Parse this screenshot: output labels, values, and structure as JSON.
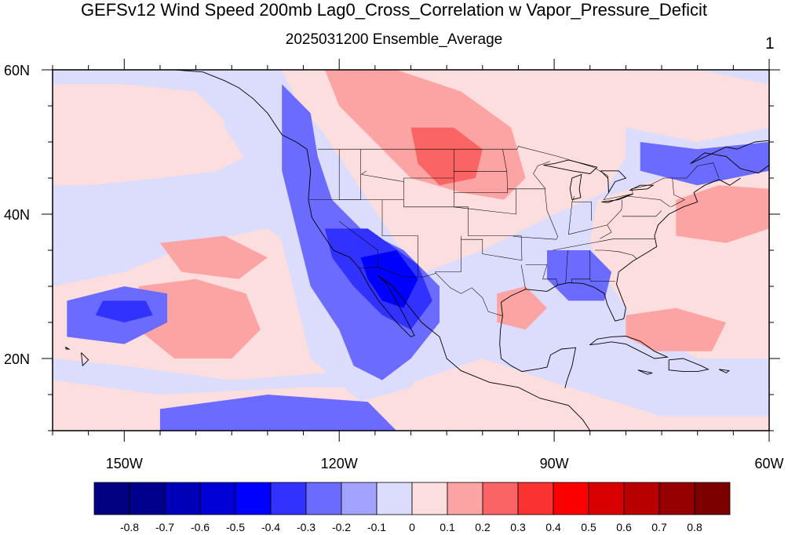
{
  "title": "GEFSv12 Wind Speed 200mb Lag0_Cross_Correlation w Vapor_Pressure_Deficit",
  "subtitle": "2025031200 Ensemble_Average",
  "panel_number": "1",
  "map": {
    "lon_range": [
      -160,
      -60
    ],
    "lat_range": [
      10,
      60
    ],
    "lon_ticks": [
      {
        "value": -150,
        "label": "150W"
      },
      {
        "value": -120,
        "label": "120W"
      },
      {
        "value": -90,
        "label": "90W"
      },
      {
        "value": -60,
        "label": "60W"
      }
    ],
    "lat_ticks": [
      {
        "value": 20,
        "label": "20N"
      },
      {
        "value": 40,
        "label": "40N"
      },
      {
        "value": 60,
        "label": "60N"
      }
    ],
    "background_field": "-0.1",
    "regions": [
      {
        "name": "east-pacific-light-red",
        "level": "0.1",
        "ring": [
          [
            -160,
            58
          ],
          [
            -150,
            58
          ],
          [
            -140,
            57
          ],
          [
            -135,
            52
          ],
          [
            -133,
            48
          ],
          [
            -137,
            46
          ],
          [
            -145,
            45
          ],
          [
            -155,
            44
          ],
          [
            -160,
            44
          ]
        ]
      },
      {
        "name": "subtropical-pacific-light-red",
        "level": "0.1",
        "ring": [
          [
            -160,
            30
          ],
          [
            -150,
            32
          ],
          [
            -140,
            36
          ],
          [
            -130,
            38
          ],
          [
            -124,
            34
          ],
          [
            -120,
            28
          ],
          [
            -118,
            22
          ],
          [
            -122,
            18
          ],
          [
            -135,
            17
          ],
          [
            -150,
            19
          ],
          [
            -160,
            20
          ]
        ]
      },
      {
        "name": "tropical-pacific-light-red",
        "level": "0.1",
        "ring": [
          [
            -160,
            17
          ],
          [
            -145,
            15
          ],
          [
            -125,
            16
          ],
          [
            -112,
            16
          ],
          [
            -100,
            20
          ],
          [
            -88,
            16
          ],
          [
            -75,
            12
          ],
          [
            -60,
            12
          ],
          [
            -60,
            10
          ],
          [
            -160,
            10
          ]
        ]
      },
      {
        "name": "north-us-light-red",
        "level": "0.1",
        "ring": [
          [
            -128,
            60
          ],
          [
            -110,
            60
          ],
          [
            -85,
            60
          ],
          [
            -80,
            54
          ],
          [
            -80,
            48
          ],
          [
            -83,
            43
          ],
          [
            -90,
            40
          ],
          [
            -100,
            35
          ],
          [
            -108,
            32
          ],
          [
            -112,
            36
          ],
          [
            -116,
            42
          ],
          [
            -120,
            48
          ],
          [
            -125,
            54
          ]
        ]
      },
      {
        "name": "atlantic-light-red",
        "level": "0.1",
        "ring": [
          [
            -84,
            42
          ],
          [
            -72,
            46
          ],
          [
            -60,
            47
          ],
          [
            -60,
            20
          ],
          [
            -70,
            20
          ],
          [
            -78,
            24
          ],
          [
            -82,
            30
          ],
          [
            -85,
            36
          ]
        ]
      },
      {
        "name": "canada-light-red",
        "level": "0.1",
        "ring": [
          [
            -85,
            60
          ],
          [
            -70,
            60
          ],
          [
            -60,
            58
          ],
          [
            -60,
            52
          ],
          [
            -70,
            50
          ],
          [
            -80,
            52
          ]
        ]
      },
      {
        "name": "plains-red",
        "level": "0.2",
        "ring": [
          [
            -122,
            60
          ],
          [
            -112,
            60
          ],
          [
            -103,
            57
          ],
          [
            -96,
            52
          ],
          [
            -94,
            45
          ],
          [
            -97,
            42
          ],
          [
            -103,
            43
          ],
          [
            -110,
            45
          ],
          [
            -115,
            50
          ],
          [
            -120,
            55
          ]
        ]
      },
      {
        "name": "atlantic-band-red",
        "level": "0.2",
        "ring": [
          [
            -73,
            42
          ],
          [
            -67,
            44
          ],
          [
            -60,
            43.5
          ],
          [
            -60,
            38
          ],
          [
            -66,
            36
          ],
          [
            -73,
            37
          ]
        ]
      },
      {
        "name": "hawaii-region-red",
        "level": "0.2",
        "ring": [
          [
            -148,
            30
          ],
          [
            -140,
            31
          ],
          [
            -133,
            29
          ],
          [
            -131,
            24
          ],
          [
            -135,
            20
          ],
          [
            -143,
            20
          ],
          [
            -148,
            24
          ]
        ]
      },
      {
        "name": "mid-pacific-red",
        "level": "0.2",
        "ring": [
          [
            -145,
            36
          ],
          [
            -136,
            37
          ],
          [
            -130,
            34
          ],
          [
            -134,
            31
          ],
          [
            -142,
            32
          ]
        ]
      },
      {
        "name": "caribbean-red",
        "level": "0.2",
        "ring": [
          [
            -80,
            26
          ],
          [
            -73,
            27
          ],
          [
            -66,
            25
          ],
          [
            -68,
            21
          ],
          [
            -76,
            21
          ],
          [
            -80,
            23
          ]
        ]
      },
      {
        "name": "gulf-red",
        "level": "0.2",
        "ring": [
          [
            -98,
            29
          ],
          [
            -94,
            30
          ],
          [
            -91,
            27
          ],
          [
            -94,
            24
          ],
          [
            -98,
            25
          ]
        ]
      },
      {
        "name": "montana-core-red",
        "level": "0.3",
        "ring": [
          [
            -110,
            52
          ],
          [
            -104,
            52
          ],
          [
            -100,
            49
          ],
          [
            -101,
            45
          ],
          [
            -106,
            44
          ],
          [
            -109,
            47
          ]
        ]
      },
      {
        "name": "west-coast-light-blue",
        "level": "-0.1",
        "ring": [
          [
            -136,
            60
          ],
          [
            -128,
            58
          ],
          [
            -122,
            51
          ],
          [
            -119,
            46
          ],
          [
            -116,
            40
          ],
          [
            -110,
            33
          ],
          [
            -104,
            28
          ],
          [
            -106,
            22
          ],
          [
            -110,
            16
          ],
          [
            -117,
            14
          ],
          [
            -124,
            20
          ],
          [
            -126,
            28
          ],
          [
            -128,
            36
          ],
          [
            -132,
            46
          ],
          [
            -136,
            52
          ]
        ]
      },
      {
        "name": "southwest-blue",
        "level": "-0.2",
        "ring": [
          [
            -128,
            58
          ],
          [
            -124,
            54
          ],
          [
            -123,
            48
          ],
          [
            -121,
            42
          ],
          [
            -117,
            38
          ],
          [
            -111,
            35
          ],
          [
            -106,
            30
          ],
          [
            -106,
            25
          ],
          [
            -110,
            20
          ],
          [
            -114,
            17
          ],
          [
            -118,
            19
          ],
          [
            -120,
            24
          ],
          [
            -124,
            30
          ],
          [
            -126,
            38
          ],
          [
            -128,
            46
          ]
        ]
      },
      {
        "name": "hawaii-blue",
        "level": "-0.2",
        "ring": [
          [
            -158,
            28
          ],
          [
            -150,
            30
          ],
          [
            -144,
            29
          ],
          [
            -144,
            25
          ],
          [
            -150,
            22
          ],
          [
            -158,
            23
          ]
        ]
      },
      {
        "name": "tropics-blue",
        "level": "-0.2",
        "ring": [
          [
            -145,
            13
          ],
          [
            -130,
            15
          ],
          [
            -116,
            14
          ],
          [
            -112,
            10
          ],
          [
            -145,
            10
          ]
        ]
      },
      {
        "name": "southeast-blue",
        "level": "-0.2",
        "ring": [
          [
            -91,
            35
          ],
          [
            -85,
            35
          ],
          [
            -82,
            32
          ],
          [
            -83,
            28
          ],
          [
            -88,
            28
          ],
          [
            -91,
            31
          ]
        ]
      },
      {
        "name": "northeast-blue",
        "level": "-0.2",
        "ring": [
          [
            -78,
            50
          ],
          [
            -70,
            49
          ],
          [
            -60,
            50
          ],
          [
            -60,
            46
          ],
          [
            -70,
            44
          ],
          [
            -78,
            46
          ]
        ]
      },
      {
        "name": "southwest-core-blue",
        "level": "-0.3",
        "ring": [
          [
            -122,
            38
          ],
          [
            -116,
            38
          ],
          [
            -109,
            33
          ],
          [
            -107,
            28
          ],
          [
            -110,
            24
          ],
          [
            -114,
            26
          ],
          [
            -118,
            30
          ],
          [
            -121,
            34
          ]
        ]
      },
      {
        "name": "arizona-core-blue",
        "level": "-0.4",
        "ring": [
          [
            -117,
            34
          ],
          [
            -112,
            35
          ],
          [
            -109,
            31
          ],
          [
            -111,
            27
          ],
          [
            -114,
            28
          ],
          [
            -116,
            31
          ]
        ]
      },
      {
        "name": "hawaii-core-blue",
        "level": "-0.3",
        "ring": [
          [
            -153,
            28
          ],
          [
            -147,
            28
          ],
          [
            -146,
            26
          ],
          [
            -150,
            25
          ],
          [
            -154,
            26
          ]
        ]
      }
    ]
  },
  "colorbar": {
    "levels": [
      "-0.8",
      "-0.7",
      "-0.6",
      "-0.5",
      "-0.4",
      "-0.3",
      "-0.2",
      "-0.1",
      "0",
      "0.1",
      "0.2",
      "0.3",
      "0.4",
      "0.5",
      "0.6",
      "0.7",
      "0.8"
    ],
    "colors": [
      "#000080",
      "#00008c",
      "#0000b8",
      "#0000d6",
      "#0000ff",
      "#3232ff",
      "#6b6bff",
      "#a3a3ff",
      "#dcdcfc",
      "#fddede",
      "#fca4a4",
      "#fa6464",
      "#fa3232",
      "#fa0000",
      "#d80000",
      "#b80000",
      "#960000",
      "#7d0000"
    ]
  }
}
